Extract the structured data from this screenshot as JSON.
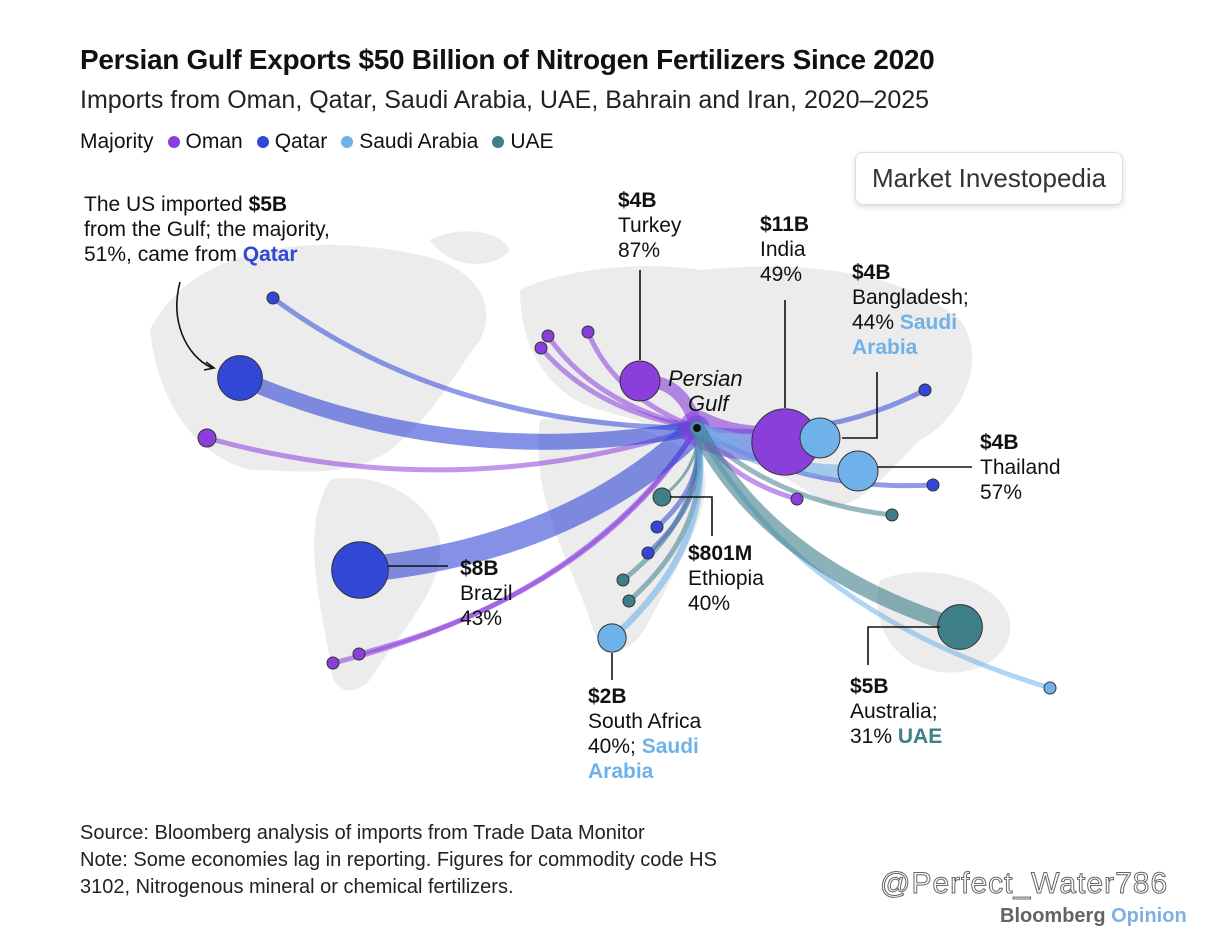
{
  "title": "Persian Gulf Exports $50 Billion of Nitrogen Fertilizers Since 2020",
  "subtitle": "Imports from Oman, Qatar, Saudi Arabia, UAE, Bahrain and Iran, 2020–2025",
  "legend": {
    "label": "Majority",
    "items": [
      {
        "name": "Oman",
        "color": "#8a3fdc"
      },
      {
        "name": "Qatar",
        "color": "#3347d6"
      },
      {
        "name": "Saudi Arabia",
        "color": "#6fb2ea"
      },
      {
        "name": "UAE",
        "color": "#3f7f8a"
      }
    ]
  },
  "brand": "Market Investopedia",
  "origin": "Persian Gulf",
  "origin_lines": [
    "Persian",
    "Gulf"
  ],
  "annotations": {
    "us": {
      "pre": "The US imported ",
      "value": "$5B",
      "line2": "from the Gulf; the majority,",
      "line3": "51%, came from ",
      "highlight": "Qatar"
    },
    "turkey": {
      "value": "$4B",
      "country": "Turkey",
      "pct": "87%"
    },
    "india": {
      "value": "$11B",
      "country": "India",
      "pct": "49%"
    },
    "bangladesh": {
      "value": "$4B",
      "country": "Bangladesh;",
      "pct": "44% ",
      "highlight1": "Saudi",
      "highlight2": "Arabia"
    },
    "thailand": {
      "value": "$4B",
      "country": "Thailand",
      "pct": "57%"
    },
    "brazil": {
      "value": "$8B",
      "country": "Brazil",
      "pct": "43%"
    },
    "ethiopia": {
      "value": "$801M",
      "country": "Ethiopia",
      "pct": "40%"
    },
    "southafrica": {
      "value": "$2B",
      "country": "South Africa",
      "pct": "40%; ",
      "highlight1": "Saudi",
      "highlight2": "Arabia"
    },
    "australia": {
      "value": "$5B",
      "country": "Australia;",
      "pct": "31% ",
      "highlight": "UAE"
    }
  },
  "destinations": [
    {
      "name": "United States",
      "value_b": 5,
      "majority": "Qatar"
    },
    {
      "name": "Brazil",
      "value_b": 8,
      "majority": "Qatar"
    },
    {
      "name": "Turkey",
      "value_b": 4,
      "majority": "Oman"
    },
    {
      "name": "India",
      "value_b": 11,
      "majority": "Oman"
    },
    {
      "name": "Bangladesh",
      "value_b": 4,
      "majority": "Saudi Arabia"
    },
    {
      "name": "Thailand",
      "value_b": 4,
      "majority": "Saudi Arabia"
    },
    {
      "name": "Ethiopia",
      "value_b": 0.801,
      "majority": "UAE"
    },
    {
      "name": "South Africa",
      "value_b": 2,
      "majority": "Saudi Arabia"
    },
    {
      "name": "Australia",
      "value_b": 5,
      "majority": "UAE"
    }
  ],
  "footer": {
    "source": "Source: Bloomberg analysis of imports from Trade Data Monitor",
    "note1": "Note: Some economies lag in reporting. Figures for commodity code HS",
    "note2": "3102, Nitrogenous mineral or chemical fertilizers."
  },
  "credit": {
    "a": "Bloomberg",
    "b": "Opinion"
  },
  "watermark": "@Perfect_Water786"
}
